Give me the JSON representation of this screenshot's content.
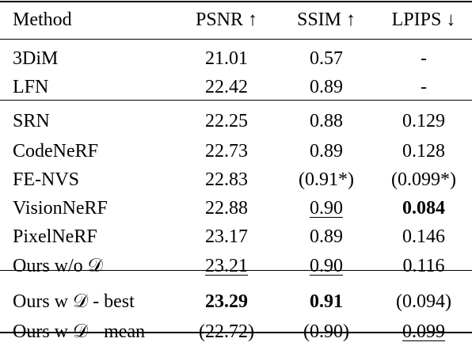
{
  "table": {
    "headers": {
      "method": "Method",
      "psnr": "PSNR ↑",
      "ssim": "SSIM ↑",
      "lpips": "LPIPS ↓"
    },
    "groups": [
      [
        {
          "method": "3DiM",
          "psnr": "21.01",
          "ssim": "0.57",
          "lpips": "-"
        },
        {
          "method": "LFN",
          "psnr": "22.42",
          "ssim": "0.89",
          "lpips": "-"
        }
      ],
      [
        {
          "method": "SRN",
          "psnr": "22.25",
          "ssim": "0.88",
          "lpips": "0.129"
        },
        {
          "method": "CodeNeRF",
          "psnr": "22.73",
          "ssim": "0.89",
          "lpips": "0.128"
        },
        {
          "method": "FE-NVS",
          "psnr": "22.83",
          "ssim": "(0.91*)",
          "lpips": "(0.099*)"
        },
        {
          "method": "VisionNeRF",
          "psnr": "22.88",
          "ssim": "0.90",
          "lpips": "0.084"
        },
        {
          "method": "PixelNeRF",
          "psnr": "23.17",
          "ssim": "0.89",
          "lpips": "0.146"
        },
        {
          "method": "Ours w/o 𝒟",
          "psnr": "23.21",
          "ssim": "0.90",
          "lpips": "0.116"
        }
      ],
      [
        {
          "method": "Ours w 𝒟 - best",
          "psnr": "23.29",
          "ssim": "0.91",
          "lpips": "(0.094)"
        },
        {
          "method": "Ours w 𝒟 - mean",
          "psnr": "(22.72)",
          "ssim": "(0.90)",
          "lpips": "0.099"
        }
      ]
    ]
  }
}
